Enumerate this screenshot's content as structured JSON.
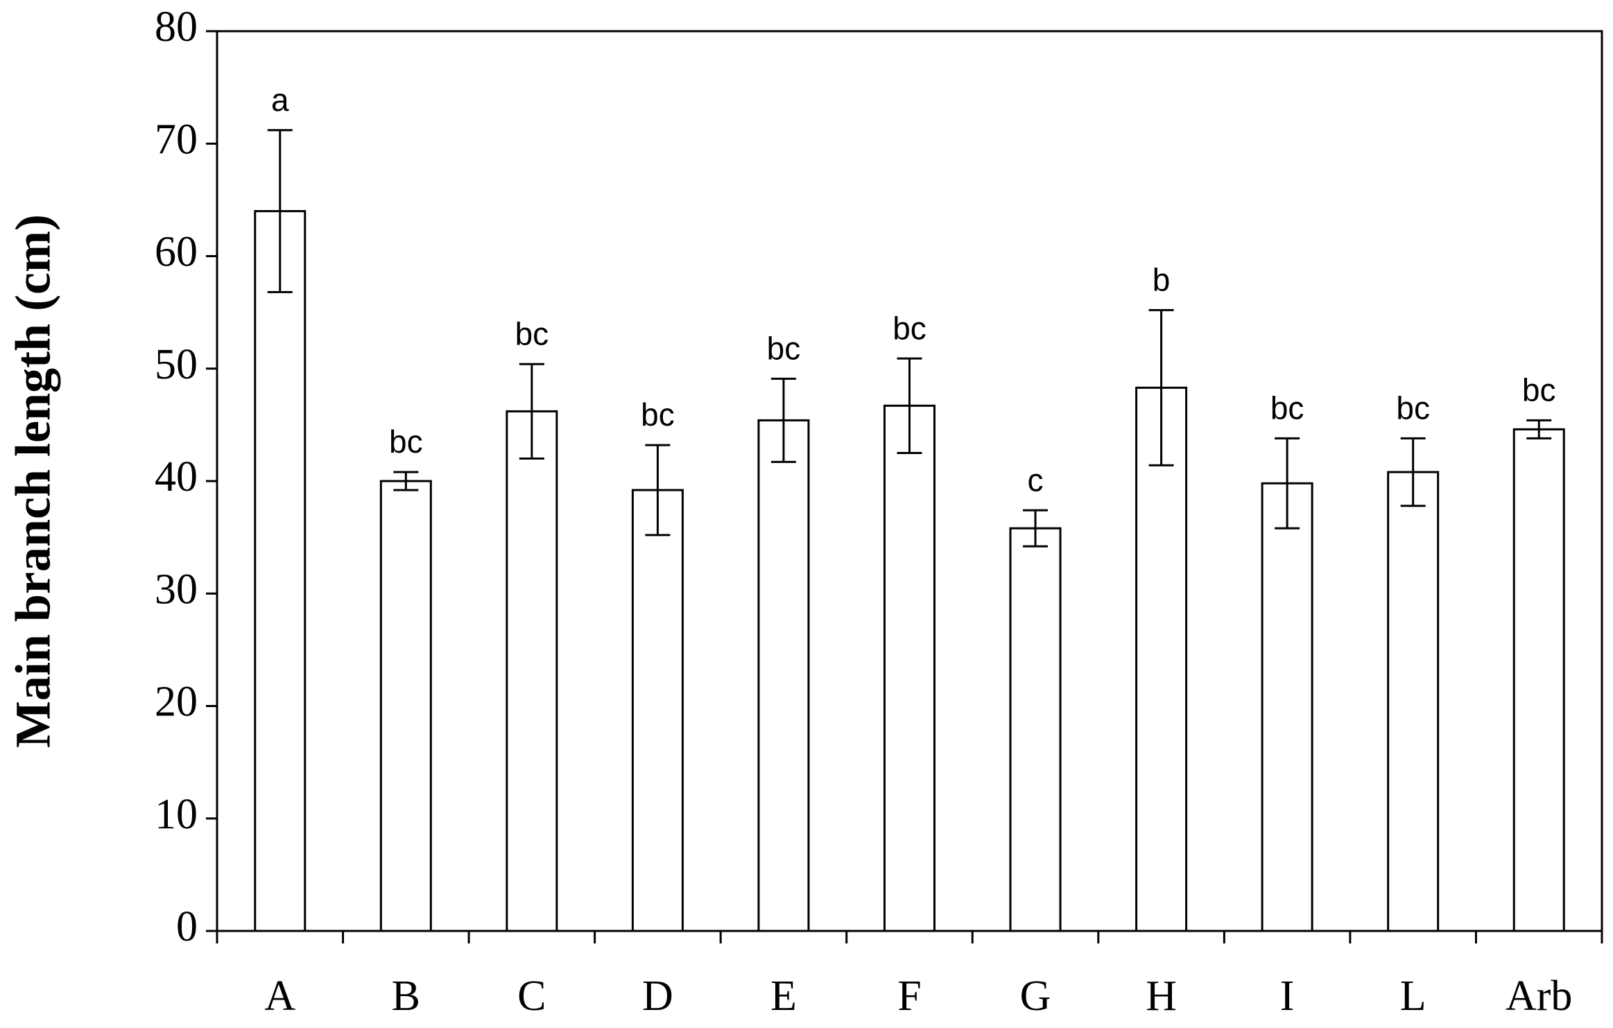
{
  "chart_data": {
    "type": "bar",
    "y_label": "Main branch length (cm)",
    "categories": [
      "A",
      "B",
      "C",
      "D",
      "E",
      "F",
      "G",
      "H",
      "I",
      "L",
      "Arb"
    ],
    "values": [
      64,
      40,
      46.2,
      39.2,
      45.4,
      46.7,
      35.8,
      48.3,
      39.8,
      40.8,
      44.6
    ],
    "errors": [
      7.2,
      0.8,
      4.2,
      4,
      3.7,
      4.2,
      1.6,
      6.9,
      4,
      3,
      0.8
    ],
    "letters": [
      "a",
      "bc",
      "bc",
      "bc",
      "bc",
      "bc",
      "c",
      "b",
      "bc",
      "bc",
      "bc"
    ],
    "color": "#ffffff",
    "ylim": [
      0,
      80
    ],
    "yticks": [
      0,
      10,
      20,
      30,
      40,
      50,
      60,
      70,
      80
    ],
    "grid": false
  }
}
